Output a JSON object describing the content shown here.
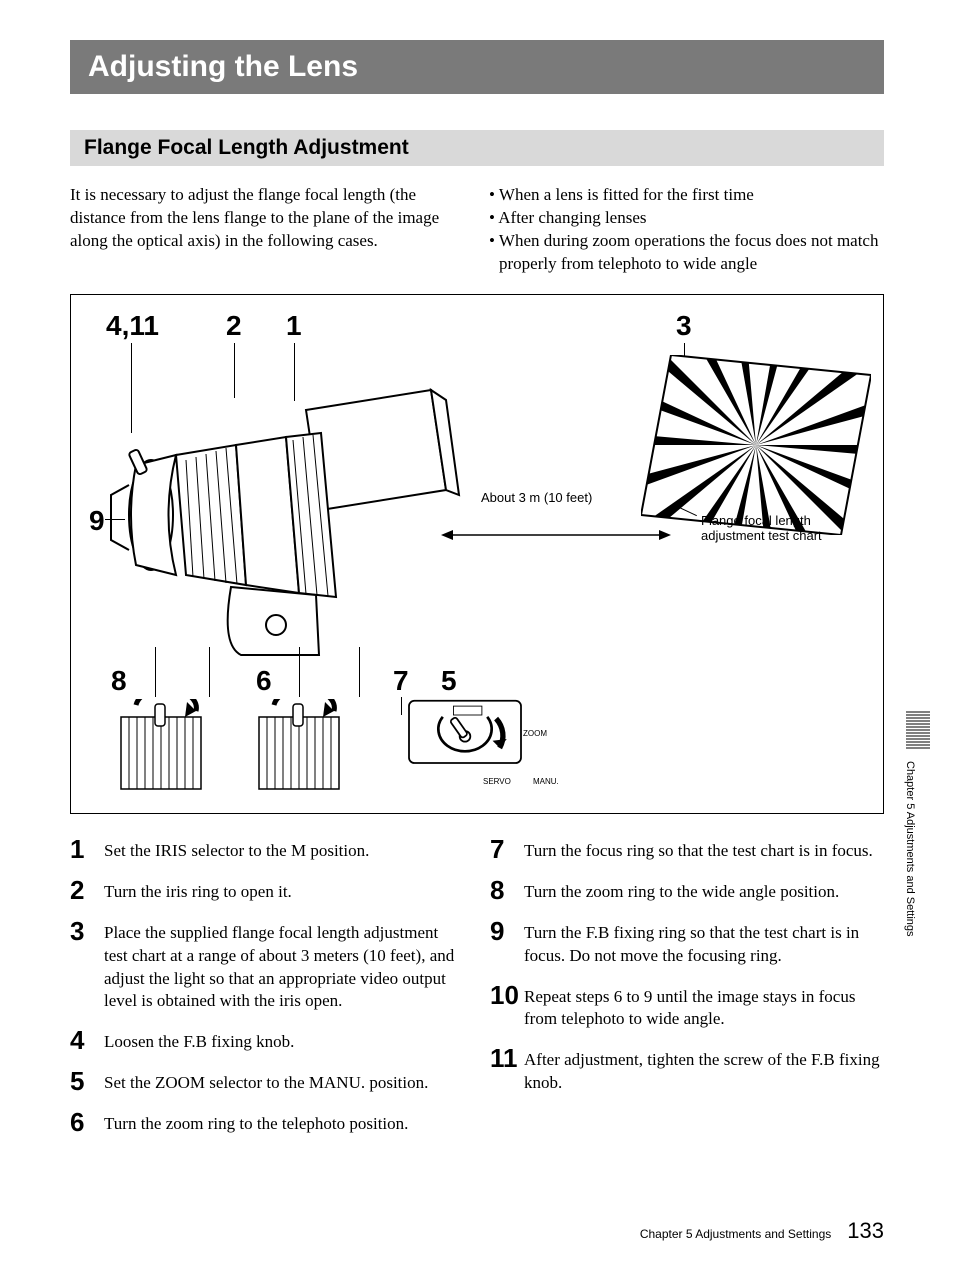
{
  "title": "Adjusting the Lens",
  "section": "Flange Focal Length Adjustment",
  "intro_left": "It is necessary to adjust the flange focal length (the distance from the lens flange to the plane of the image along the optical axis) in the following cases.",
  "intro_bullets": [
    "When a lens is fitted for the first time",
    "After changing lenses",
    "When during zoom operations the focus does not match properly from telephoto to wide angle"
  ],
  "diagram": {
    "callouts": {
      "c411": "4,11",
      "c2": "2",
      "c1": "1",
      "c3": "3",
      "c9": "9",
      "c8": "8",
      "c6": "6",
      "c7": "7",
      "c5": "5"
    },
    "distance_label": "About 3 m (10 feet)",
    "chart_label_l1": "Flange focal length",
    "chart_label_l2": "adjustment test chart",
    "switch_labels": {
      "zoom": "ZOOM",
      "servo": "SERVO",
      "manu": "MANU."
    }
  },
  "steps_left": [
    {
      "n": "1",
      "t": "Set the IRIS selector to the M position."
    },
    {
      "n": "2",
      "t": "Turn the iris ring to open it."
    },
    {
      "n": "3",
      "t": "Place the supplied flange focal length adjustment test chart at a range of about 3 meters (10 feet), and adjust the light so that an appropriate video output level is obtained with the iris open."
    },
    {
      "n": "4",
      "t": "Loosen the F.B fixing knob."
    },
    {
      "n": "5",
      "t": "Set the ZOOM selector to the MANU. position."
    },
    {
      "n": "6",
      "t": "Turn the zoom ring to the telephoto position."
    }
  ],
  "steps_right": [
    {
      "n": "7",
      "t": "Turn the focus ring so that the test chart is in focus."
    },
    {
      "n": "8",
      "t": "Turn the zoom ring to the wide angle position."
    },
    {
      "n": "9",
      "t": "Turn the F.B fixing ring so that the test chart is in focus.  Do not move the focusing ring."
    },
    {
      "n": "10",
      "t": "Repeat steps 6 to 9 until the image stays in focus from telephoto to wide angle."
    },
    {
      "n": "11",
      "t": "After adjustment, tighten the screw of the F.B fixing knob."
    }
  ],
  "side_tab": "Chapter 5 Adjustments and Settings",
  "footer_chapter": "Chapter 5   Adjustments and Settings",
  "page_number": "133",
  "colors": {
    "title_bg": "#7a7a7a",
    "section_bg": "#d9d9d9",
    "text": "#000000",
    "page_bg": "#ffffff"
  },
  "typography": {
    "body_family": "Times New Roman",
    "heading_family": "Arial",
    "title_size_pt": 23,
    "section_size_pt": 16,
    "body_size_pt": 13,
    "step_num_size_pt": 20
  }
}
